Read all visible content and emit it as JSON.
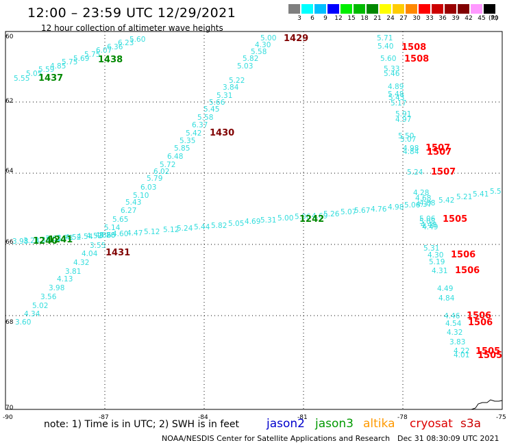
{
  "header": {
    "title": "12:00 – 23:59 UTC 12/29/2021",
    "subtitle": "12 hour collection of altimeter wave heights"
  },
  "color_scale": {
    "labels": [
      "3",
      "6",
      "9",
      "12",
      "15",
      "18",
      "21",
      "24",
      "27",
      "30",
      "33",
      "36",
      "39",
      "42",
      "45",
      "70"
    ],
    "unit": "(ft)",
    "colors": [
      "#7f7f7f",
      "#00ffff",
      "#00bfff",
      "#0000ff",
      "#00ee00",
      "#00bb00",
      "#008800",
      "#ffff00",
      "#ffcc00",
      "#ff8800",
      "#ff0000",
      "#cc0000",
      "#990000",
      "#800000",
      "#ff99ff",
      "#000000"
    ]
  },
  "axes": {
    "y_labels": [
      "60",
      "62",
      "64",
      "66",
      "68",
      "70"
    ],
    "x_labels": [
      "-90",
      "-87",
      "-84",
      "-81",
      "-78",
      "-75"
    ]
  },
  "tracks": [
    {
      "id": "track-1437-1438",
      "satellite": "jason3",
      "pass_color": "#008800",
      "point_color": "#33dddd",
      "values": [
        "5.55",
        "5.05",
        "5.59",
        "4.85",
        "5.75",
        "5.69",
        "5.75",
        "6.07",
        "6.36",
        "6.23",
        "5.60"
      ],
      "labels": [
        {
          "text": "1437"
        },
        {
          "text": "1438"
        }
      ]
    },
    {
      "id": "track-1429-1430-1431",
      "satellite": "cryosat",
      "pass_color": "#800000",
      "point_color": "#33dddd",
      "values": [
        "3.60",
        "4.34",
        "5.02",
        "3.56",
        "3.98",
        "4.13",
        "3.81",
        "4.32",
        "4.04",
        "3.55",
        "4.86",
        "5.28",
        "5.14",
        "5.65",
        "6.27",
        "5.43",
        "5.10",
        "6.03",
        "5.79",
        "6.02",
        "5.72",
        "6.48",
        "5.85",
        "5.35",
        "5.42",
        "6.37",
        "5.58",
        "5.45",
        "5.66",
        "5.31",
        "3.84",
        "5.22",
        "5.03",
        "5.82",
        "5.58",
        "4.30",
        "5.00"
      ],
      "labels": [
        {
          "text": "1431"
        },
        {
          "text": "1430"
        },
        {
          "text": "1429"
        }
      ]
    },
    {
      "id": "track-1240-1241-1242",
      "satellite": "jason3",
      "pass_color": "#008800",
      "point_color": "#33dddd",
      "values": [
        "3.98",
        "3.23",
        "3.35",
        "3.61",
        "3.78",
        "4.52",
        "4.54",
        "4.52",
        "4.86",
        "4.60",
        "4.47",
        "5.12",
        "5.12",
        "5.24",
        "5.44",
        "5.82",
        "5.05",
        "4.69",
        "5.31",
        "5.00",
        "5.06",
        "4.69",
        "5.26",
        "5.07",
        "5.67",
        "4.76",
        "4.98",
        "5.06",
        "4.88",
        "5.42",
        "5.21",
        "5.41",
        "5.5"
      ],
      "labels": [
        {
          "text": "1240"
        },
        {
          "text": "1241"
        },
        {
          "text": "1242"
        }
      ]
    },
    {
      "id": "track-1505-1508",
      "satellite": "cryosat",
      "pass_color": "#ff0000",
      "point_color": "#33dddd",
      "values": [
        "5.71",
        "5.40",
        "5.60",
        "5.33",
        "5.46",
        "4.89",
        "5.48",
        "5.43",
        "5.17",
        "5.91",
        "4.97",
        "5.50",
        "5.07",
        "4.98",
        "4.84",
        "5.24",
        "4.28",
        "4.68",
        "4.37",
        "5.06",
        "5.08",
        "4.48",
        "4.49",
        "5.31",
        "4.30",
        "5.19",
        "4.31",
        "4.49",
        "4.84",
        "4.46",
        "4.54",
        "4.32",
        "3.83",
        "4.22",
        "4.01"
      ],
      "labels": [
        {
          "text": "1508"
        },
        {
          "text": "1508"
        },
        {
          "text": "1507"
        },
        {
          "text": "1507"
        },
        {
          "text": "1507"
        },
        {
          "text": "1505"
        },
        {
          "text": "1506"
        },
        {
          "text": "1506"
        },
        {
          "text": "1506"
        },
        {
          "text": "1506"
        },
        {
          "text": "1505"
        },
        {
          "text": "1505"
        }
      ]
    }
  ],
  "footer": {
    "note": "note:  1) Time is in UTC;  2) SWH is in feet",
    "legend": [
      {
        "name": "jason2",
        "color": "#0000cc"
      },
      {
        "name": "jason3",
        "color": "#009900"
      },
      {
        "name": "altika",
        "color": "#ff9900"
      },
      {
        "name": "cryosat",
        "color": "#dd0000"
      },
      {
        "name": "s3a",
        "color": "#cc0000"
      }
    ],
    "credit": "NOAA/NESDIS Center for Satellite Applications and Research",
    "timestamp": "Dec 31 08:30:09 UTC 2021"
  }
}
